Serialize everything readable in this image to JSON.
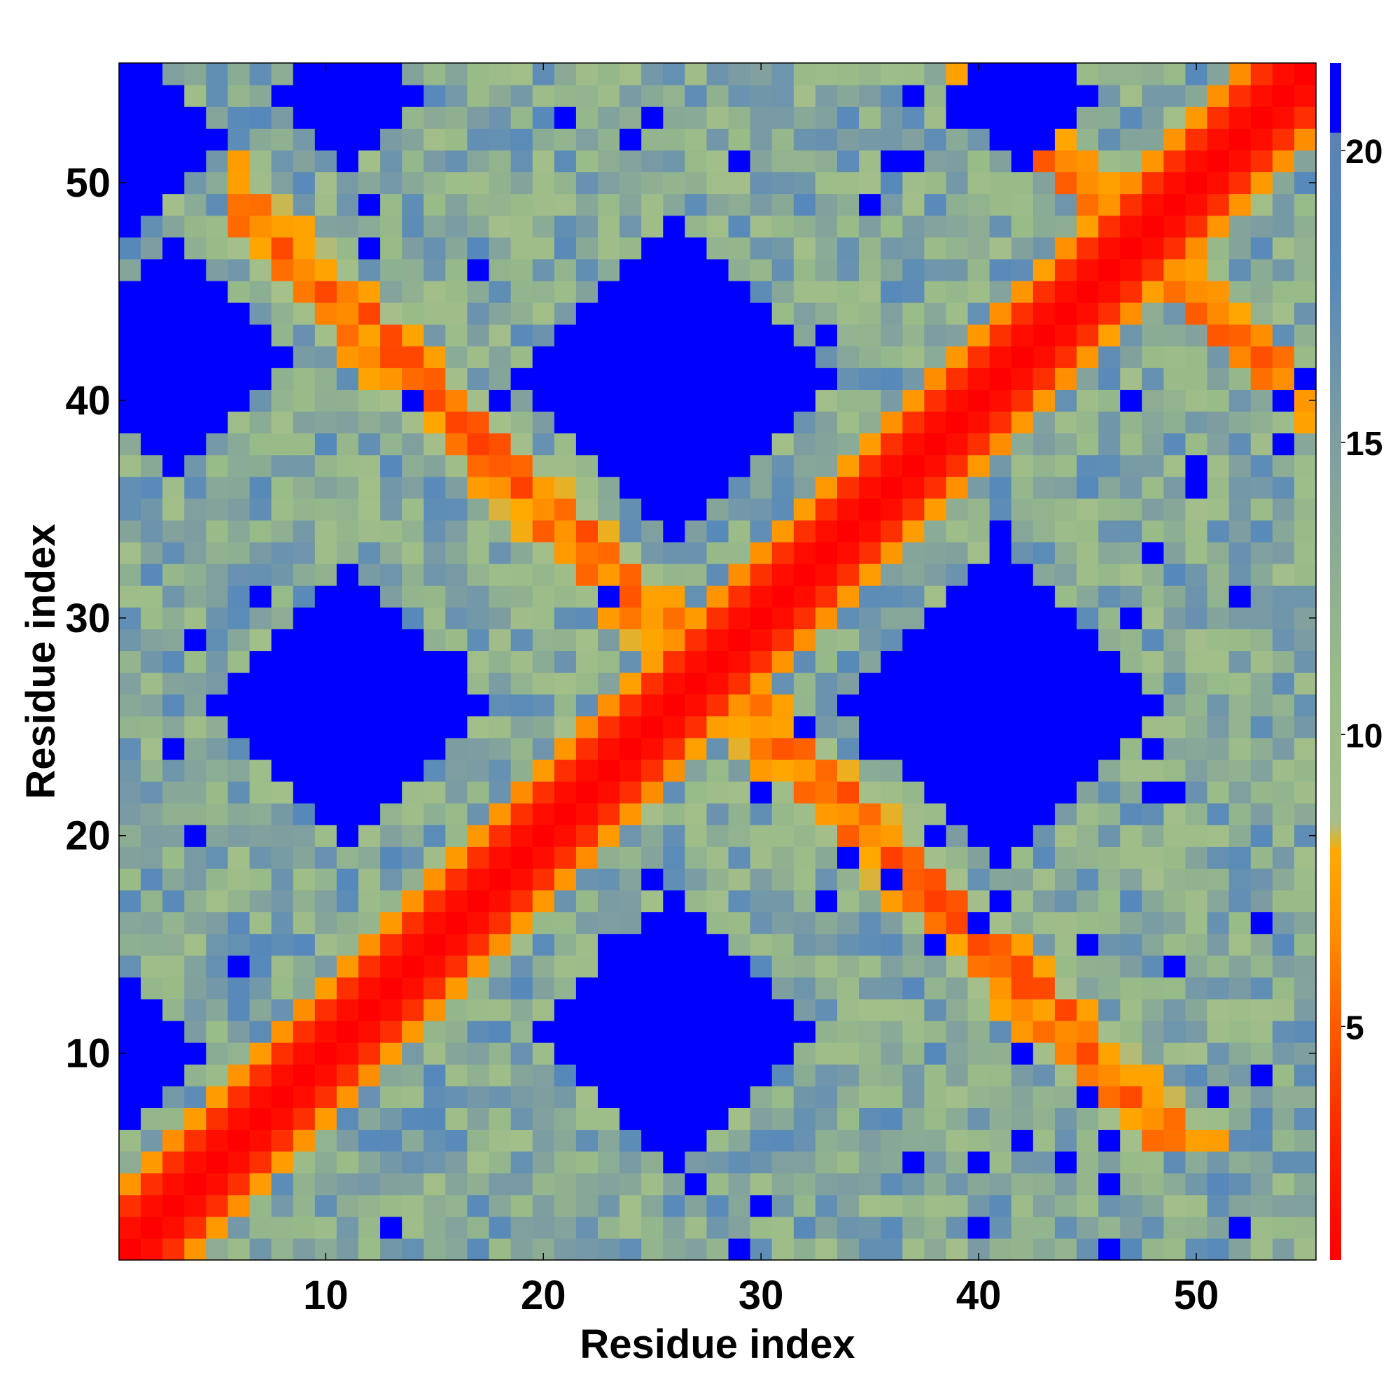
{
  "chart_data": {
    "type": "heatmap",
    "title": "",
    "xlabel": "Residue index",
    "ylabel": "Residue index",
    "xlim": [
      1,
      55
    ],
    "ylim": [
      1,
      55
    ],
    "x_ticks": [
      10,
      20,
      30,
      40,
      50
    ],
    "y_ticks": [
      10,
      20,
      30,
      40,
      50
    ],
    "colorbar": {
      "range": [
        1,
        21.5
      ],
      "ticks": [
        5,
        10,
        15,
        20
      ],
      "stops": [
        {
          "value": 1,
          "color": "#ff0000"
        },
        {
          "value": 3,
          "color": "#ff2200"
        },
        {
          "value": 5,
          "color": "#ff5a00"
        },
        {
          "value": 6.5,
          "color": "#ff8c00"
        },
        {
          "value": 8,
          "color": "#ffaa00"
        },
        {
          "value": 8.5,
          "color": "#a6bf8a"
        },
        {
          "value": 11,
          "color": "#98bb88"
        },
        {
          "value": 15,
          "color": "#7f9ea0"
        },
        {
          "value": 18,
          "color": "#5588bb"
        },
        {
          "value": 20.3,
          "color": "#5a82b8"
        },
        {
          "value": 20.31,
          "color": "#0000ff"
        },
        {
          "value": 21.5,
          "color": "#0000ff"
        }
      ]
    },
    "description": "Symmetric residue-residue distance map for residues 1-55: red diagonal band (distance ~1-4), orange antidiagonal contacts, blue (>20) blocks centered near (11,26),(26,11),(26,41),(41,26),(26,41) and corners.",
    "matrix_model": {
      "n": 55,
      "diagonal_width": 1.5,
      "far_blocks": [
        {
          "i": 11,
          "j": 26,
          "r": 6.5
        },
        {
          "i": 26,
          "j": 41,
          "r": 7.5
        },
        {
          "i": 4,
          "j": 45,
          "r": 6
        },
        {
          "i": 1,
          "j": 55,
          "r": 4
        },
        {
          "i": 12,
          "j": 55,
          "r": 3
        },
        {
          "i": 42,
          "j": 1,
          "r": 5
        }
      ],
      "antidiagonal_contacts": [
        {
          "i1": 6,
          "j1": 50,
          "i2": 12,
          "j2": 45
        },
        {
          "i1": 13,
          "j1": 40,
          "i2": 28,
          "j2": 27
        }
      ]
    }
  }
}
